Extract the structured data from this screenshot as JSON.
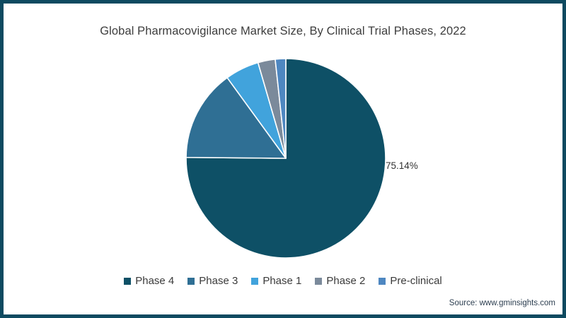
{
  "frame": {
    "border_color": "#0e4a60",
    "background": "#ffffff"
  },
  "title": "Global Pharmacovigilance Market Size, By Clinical Trial Phases, 2022",
  "source": "Source: www.gminsights.com",
  "chart_data": {
    "type": "pie",
    "title": "Global Pharmacovigilance Market Size, By Clinical Trial Phases, 2022",
    "legend_position": "bottom",
    "start_angle_deg": 0,
    "direction": "clockwise",
    "slice_divider_color": "#ffffff",
    "series": [
      {
        "name": "Phase 4",
        "value": 75.14,
        "label": "75.14%",
        "color": "#0e5066"
      },
      {
        "name": "Phase 3",
        "value": 14.86,
        "label": "",
        "color": "#2f6f94"
      },
      {
        "name": "Phase 1",
        "value": 5.5,
        "label": "",
        "color": "#41a3dc"
      },
      {
        "name": "Phase 2",
        "value": 2.8,
        "label": "",
        "color": "#7b8a9b"
      },
      {
        "name": "Pre-clinical",
        "value": 1.7,
        "label": "",
        "color": "#4e87c1"
      }
    ]
  }
}
